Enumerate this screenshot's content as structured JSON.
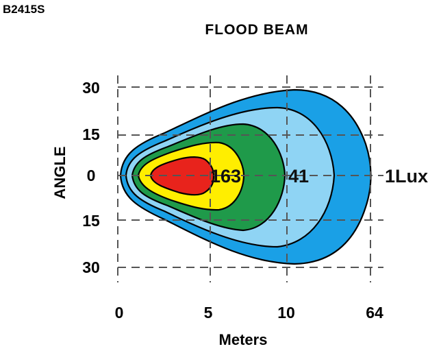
{
  "header": {
    "model": "B2415S",
    "title": "FLOOD  BEAM"
  },
  "chart_data": {
    "type": "isolux-contour",
    "title": "FLOOD  BEAM",
    "xlabel": "Meters",
    "ylabel": "ANGLE",
    "x_ticks": [
      "0",
      "5",
      "10",
      "64"
    ],
    "y_ticks": [
      "30",
      "15",
      "0",
      "15",
      "30"
    ],
    "grid": "dashed",
    "contours": [
      {
        "level": "1",
        "label": "1Lux",
        "color": "#1aa0e6"
      },
      {
        "level": "",
        "label": "",
        "color": "#8fd4f4"
      },
      {
        "level": "41",
        "label": "41",
        "color": "#1f9a4a"
      },
      {
        "level": "",
        "label": "",
        "color": "#ffee00"
      },
      {
        "level": "163",
        "label": "163",
        "color": "#e8231c"
      }
    ]
  }
}
